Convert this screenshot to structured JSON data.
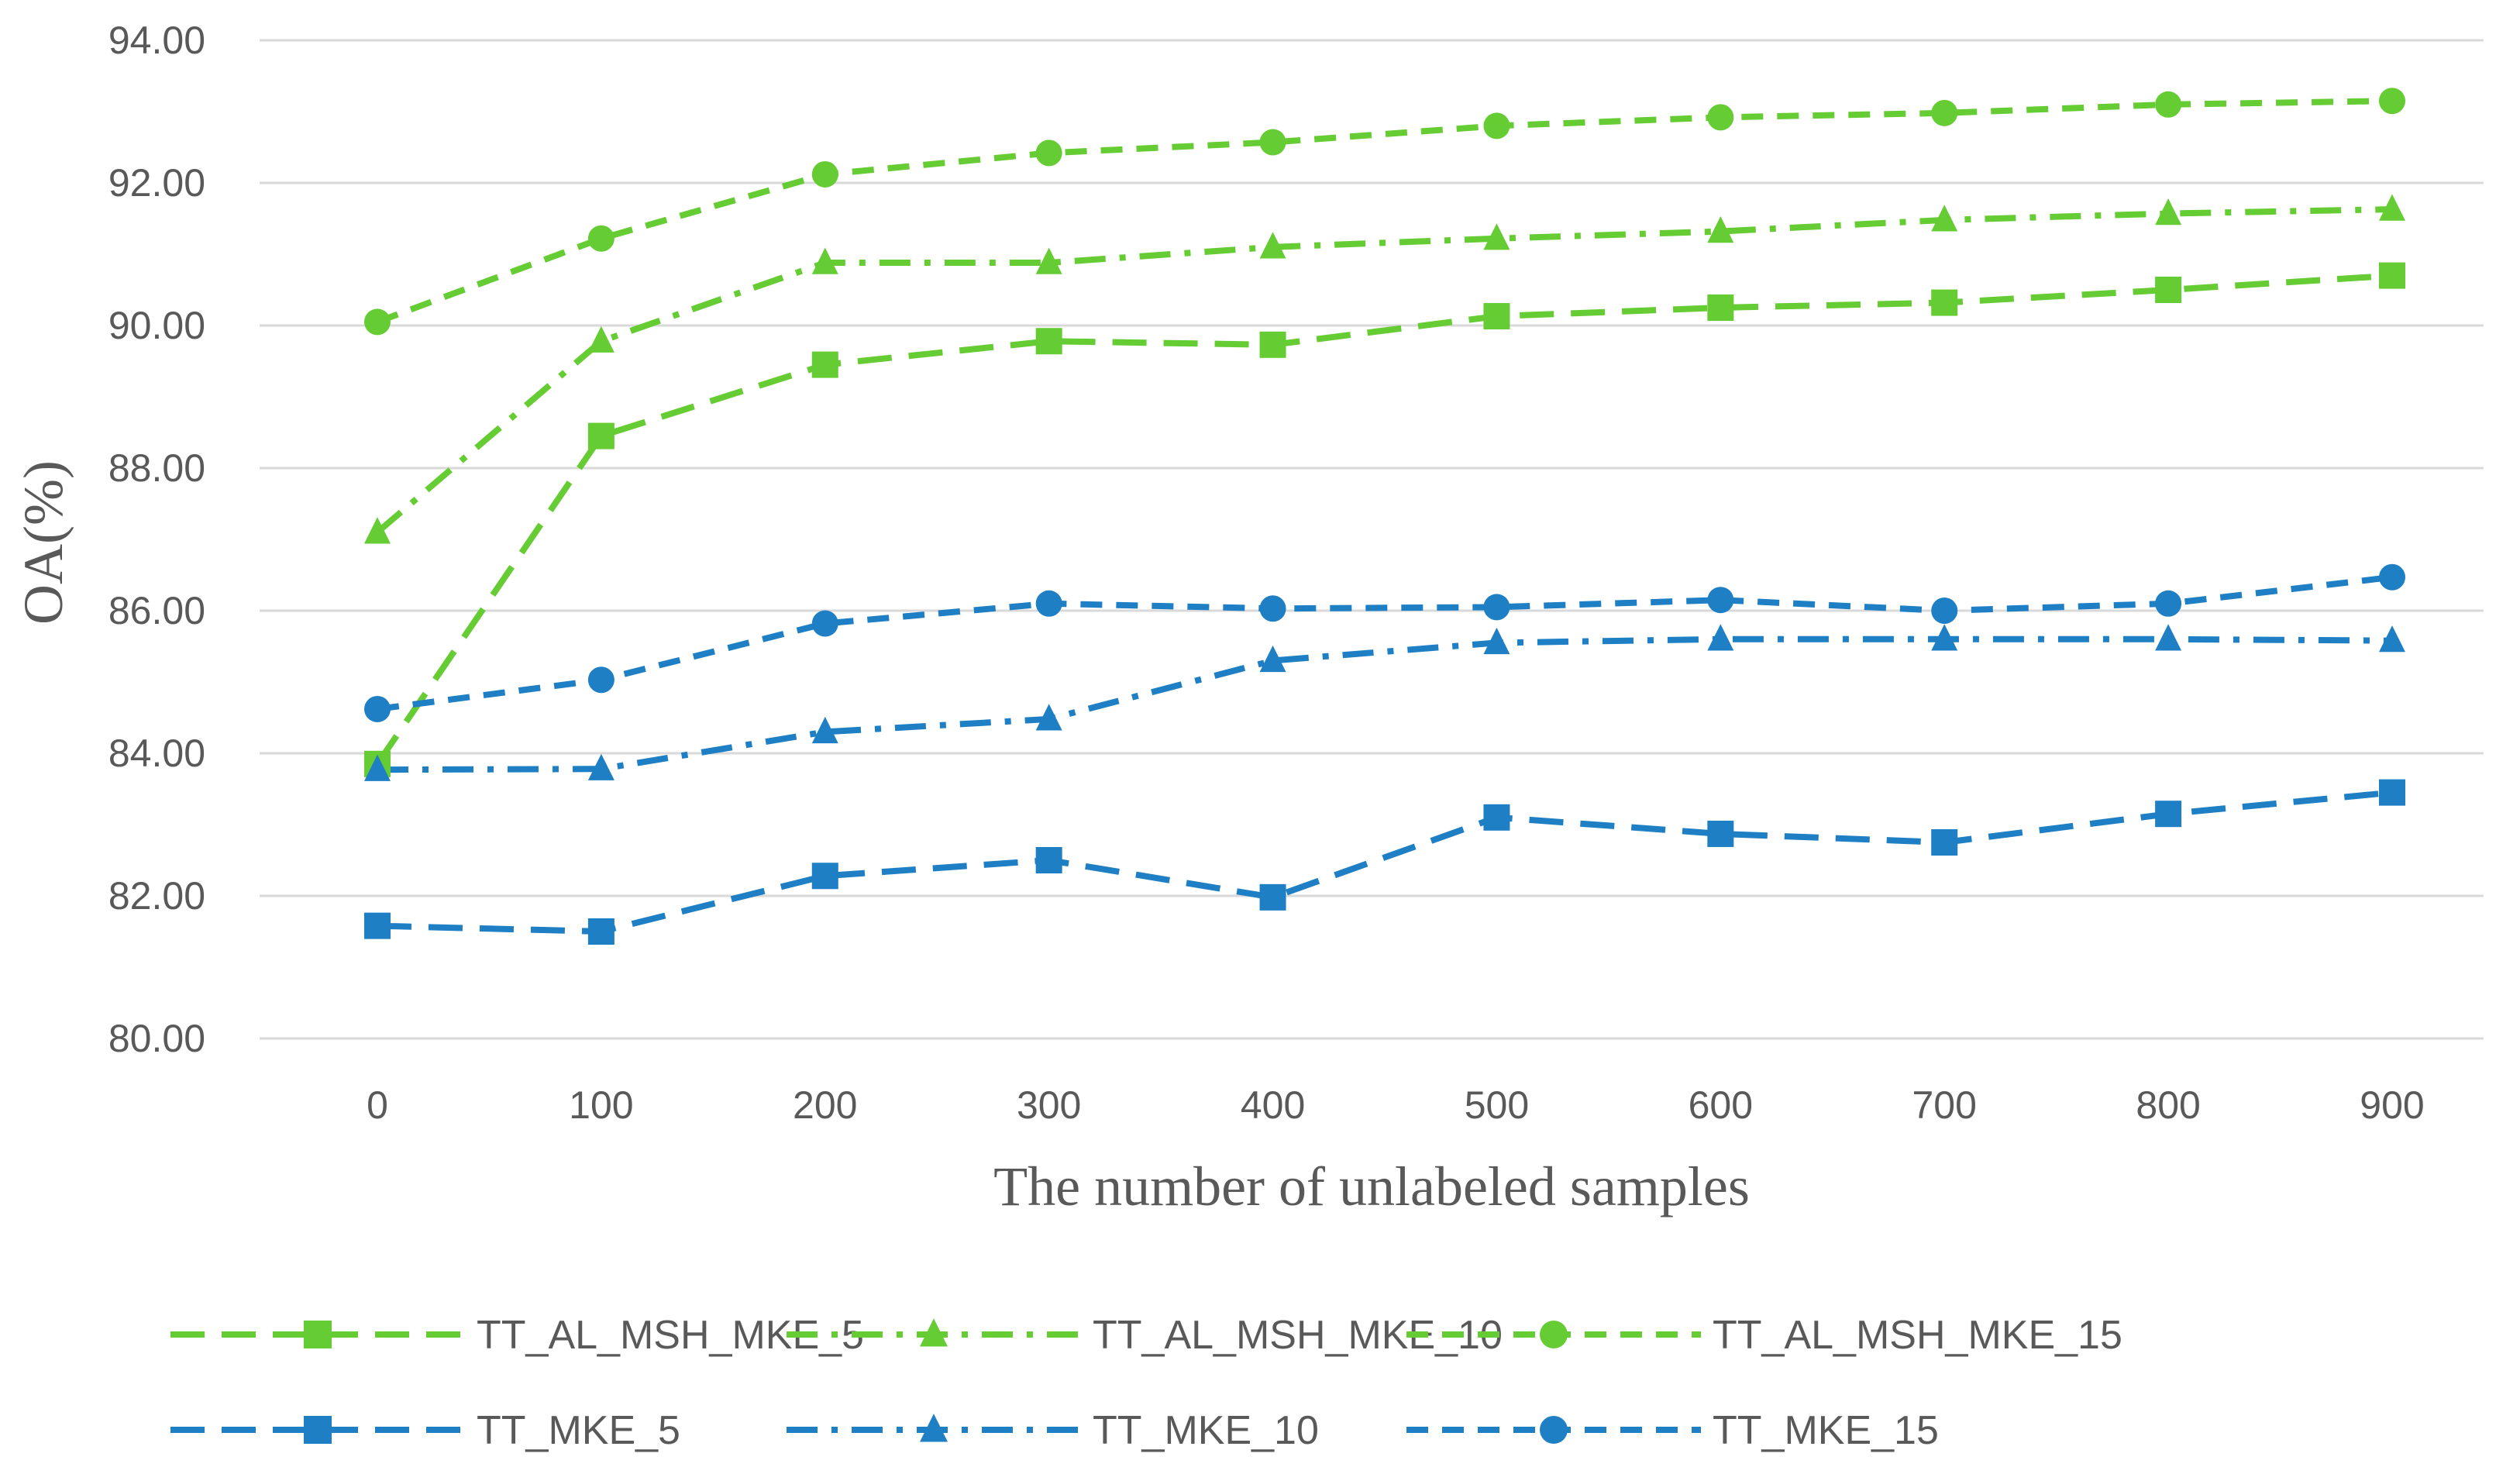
{
  "chart_data": {
    "type": "line",
    "title": "",
    "xlabel": "The number of unlabeled samples",
    "ylabel": "OA(%)",
    "categories": [
      "0",
      "100",
      "200",
      "300",
      "400",
      "500",
      "600",
      "700",
      "800",
      "900"
    ],
    "ylim": [
      80,
      94
    ],
    "yticks": [
      "80.00",
      "82.00",
      "84.00",
      "86.00",
      "88.00",
      "90.00",
      "92.00",
      "94.00"
    ],
    "grid": true,
    "legend_position": "bottom",
    "series": [
      {
        "name": "TT_AL_MSH_MKE_5",
        "color": "#66cc33",
        "marker": "square",
        "dash": "long-dash",
        "values": [
          83.85,
          88.45,
          89.45,
          89.78,
          89.73,
          90.13,
          90.25,
          90.32,
          90.5,
          90.7
        ]
      },
      {
        "name": "TT_AL_MSH_MKE_10",
        "color": "#66cc33",
        "marker": "triangle",
        "dash": "dash-dot",
        "values": [
          87.1,
          89.78,
          90.88,
          90.88,
          91.1,
          91.22,
          91.32,
          91.48,
          91.57,
          91.63
        ]
      },
      {
        "name": "TT_AL_MSH_MKE_15",
        "color": "#66cc33",
        "marker": "circle",
        "dash": "dash",
        "values": [
          90.05,
          91.22,
          92.12,
          92.42,
          92.57,
          92.8,
          92.92,
          92.98,
          93.1,
          93.15
        ]
      },
      {
        "name": "TT_MKE_5",
        "color": "#1f7fc4",
        "marker": "square",
        "dash": "long-dash",
        "values": [
          81.58,
          81.5,
          82.28,
          82.5,
          81.98,
          83.1,
          82.87,
          82.75,
          83.15,
          83.45
        ]
      },
      {
        "name": "TT_MKE_10",
        "color": "#1f7fc4",
        "marker": "triangle",
        "dash": "dash-dot",
        "values": [
          83.77,
          83.78,
          84.3,
          84.48,
          85.3,
          85.55,
          85.6,
          85.6,
          85.6,
          85.58
        ]
      },
      {
        "name": "TT_MKE_15",
        "color": "#1f7fc4",
        "marker": "circle",
        "dash": "dash",
        "values": [
          84.62,
          85.03,
          85.82,
          86.1,
          86.03,
          86.05,
          86.15,
          86.0,
          86.1,
          86.47
        ]
      }
    ]
  }
}
